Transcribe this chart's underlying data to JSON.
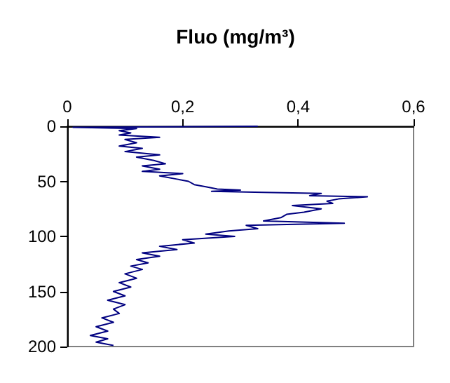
{
  "chart_data": {
    "type": "line",
    "title": "Fluo (mg/m³)",
    "x": [
      0.33,
      0.01,
      0.12,
      0.09,
      0.11,
      0.09,
      0.16,
      0.1,
      0.12,
      0.09,
      0.13,
      0.1,
      0.16,
      0.12,
      0.15,
      0.17,
      0.13,
      0.16,
      0.13,
      0.2,
      0.16,
      0.19,
      0.21,
      0.22,
      0.24,
      0.26,
      0.3,
      0.25,
      0.34,
      0.44,
      0.42,
      0.52,
      0.47,
      0.45,
      0.46,
      0.39,
      0.44,
      0.41,
      0.38,
      0.37,
      0.34,
      0.48,
      0.31,
      0.33,
      0.28,
      0.24,
      0.29,
      0.2,
      0.22,
      0.16,
      0.19,
      0.13,
      0.16,
      0.12,
      0.14,
      0.11,
      0.13,
      0.1,
      0.12,
      0.09,
      0.11,
      0.08,
      0.1,
      0.07,
      0.1,
      0.08,
      0.09,
      0.06,
      0.08,
      0.05,
      0.07,
      0.04,
      0.07,
      0.05,
      0.08
    ],
    "values": [
      0,
      1,
      2,
      4,
      6,
      8,
      10,
      12,
      15,
      18,
      20,
      23,
      26,
      28,
      31,
      34,
      36,
      39,
      41,
      43,
      45,
      48,
      50,
      53,
      55,
      57,
      58,
      59,
      60,
      61,
      63,
      64,
      66,
      68,
      70,
      72,
      75,
      78,
      80,
      83,
      86,
      88,
      90,
      93,
      95,
      98,
      100,
      103,
      106,
      109,
      112,
      115,
      118,
      121,
      124,
      127,
      130,
      134,
      138,
      142,
      146,
      150,
      154,
      158,
      162,
      166,
      170,
      174,
      178,
      182,
      186,
      190,
      193,
      196,
      199
    ],
    "color": "#000080",
    "xlim": [
      0,
      0.6
    ],
    "xticks": [
      0,
      {
        "value": 0.2,
        "label": "0,2"
      },
      {
        "value": 0.4,
        "label": "0,4"
      },
      {
        "value": 0.6,
        "label": "0,6"
      }
    ],
    "ylim": [
      200,
      0
    ],
    "yticks": [
      0,
      50,
      100,
      150,
      200
    ],
    "grid": false,
    "marker": "none",
    "line_style": "solid"
  }
}
